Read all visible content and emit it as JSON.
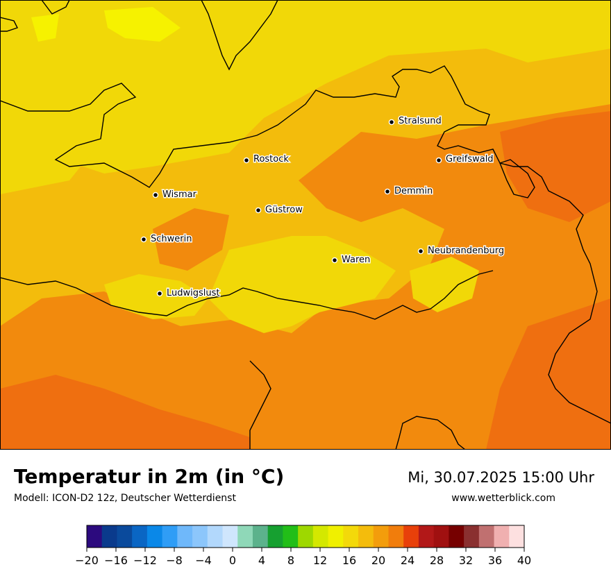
{
  "header": {
    "title": "Temperatur in 2m (in °C)",
    "subtitle": "Modell: ICON-D2 12z, Deutscher Wetterdienst",
    "datetime": "Mi, 30.07.2025 15:00 Uhr",
    "website": "www.wetterblick.com"
  },
  "cities": [
    {
      "name": "Stralsund"
    },
    {
      "name": "Rostock"
    },
    {
      "name": "Greifswald"
    },
    {
      "name": "Wismar"
    },
    {
      "name": "Demmin"
    },
    {
      "name": "Güstrow"
    },
    {
      "name": "Schwerin"
    },
    {
      "name": "Neubrandenburg"
    },
    {
      "name": "Waren"
    },
    {
      "name": "Ludwigslust"
    }
  ],
  "legend": {
    "ticks": [
      "−20",
      "−16",
      "−12",
      "−8",
      "−4",
      "0",
      "4",
      "8",
      "12",
      "16",
      "20",
      "24",
      "28",
      "32",
      "36",
      "40"
    ],
    "colors": [
      "#2c0a7e",
      "#0a3a8c",
      "#0a4a9c",
      "#0a66c4",
      "#0a88e8",
      "#2f9df6",
      "#6fb8fa",
      "#8cc6fb",
      "#b2d8fc",
      "#cfe6fd",
      "#8fd8b8",
      "#5cb28c",
      "#16a030",
      "#22be18",
      "#9ed800",
      "#d4e800",
      "#f0f000",
      "#f3d90a",
      "#f4bc0c",
      "#f39d0c",
      "#f17d0c",
      "#e8400a",
      "#b21818",
      "#a01010",
      "#760000",
      "#8a3030",
      "#c07070",
      "#f0b0b0",
      "#fde0e0"
    ],
    "range": [
      -20,
      40
    ]
  },
  "map_colors": {
    "pale_yellow": "#f1d808",
    "bright_yellow": "#f6f200",
    "amber": "#f3bc0c",
    "orange": "#f28a0d",
    "dark_orange": "#ef6f10",
    "coastline": "#000000"
  }
}
